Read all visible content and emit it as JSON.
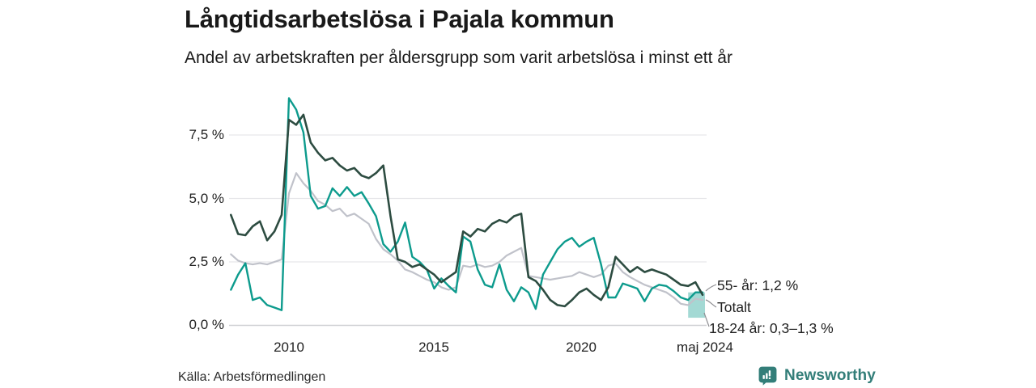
{
  "header": {
    "title": "Långtidsarbetslösa i Pajala kommun",
    "subtitle": "Andel av arbetskraften per åldersgrupp som varit arbetslösa i minst ett år"
  },
  "chart_data": {
    "type": "line",
    "title": "Långtidsarbetslösa i Pajala kommun",
    "subtitle": "Andel av arbetskraften per åldersgrupp som varit arbetslösa i minst ett år",
    "unit": "%",
    "x_start": 2008.0,
    "x_step": 0.25,
    "xlim": [
      2008.0,
      2024.37
    ],
    "ylim": [
      0,
      9
    ],
    "grid": "horizontal",
    "x_ticks": [
      {
        "t": 2010,
        "label": "2010"
      },
      {
        "t": 2015,
        "label": "2015"
      },
      {
        "t": 2020,
        "label": "2020"
      },
      {
        "t": 2024.33,
        "label": "maj 2024"
      }
    ],
    "y_ticks": [
      {
        "v": 7.5,
        "label": "7,5 %"
      },
      {
        "v": 5.0,
        "label": "5,0 %"
      },
      {
        "v": 2.5,
        "label": "2,5 %"
      },
      {
        "v": 0.0,
        "label": "0,0 %"
      }
    ],
    "series": [
      {
        "name": "Totalt",
        "color": "#c0c2ca",
        "width": 2.2,
        "values": [
          2.8,
          2.55,
          2.45,
          2.4,
          2.45,
          2.4,
          2.5,
          2.6,
          5.2,
          6.0,
          5.6,
          5.3,
          4.9,
          4.75,
          4.5,
          4.6,
          4.3,
          4.4,
          4.2,
          4.0,
          3.4,
          3.0,
          2.8,
          2.55,
          2.2,
          2.1,
          1.95,
          1.8,
          1.7,
          1.5,
          1.4,
          1.5,
          2.35,
          2.3,
          2.4,
          2.3,
          2.35,
          2.5,
          2.75,
          2.9,
          3.05,
          1.95,
          1.9,
          1.85,
          1.8,
          1.85,
          1.9,
          1.95,
          2.1,
          2.0,
          1.9,
          2.0,
          2.35,
          2.44,
          2.1,
          1.9,
          1.75,
          1.6,
          1.5,
          1.4,
          1.3,
          1.1,
          0.85,
          0.8,
          1.05,
          1.0
        ]
      },
      {
        "name": "18-24 år",
        "color": "#0d9b8d",
        "width": 2.4,
        "values": [
          1.4,
          2.0,
          2.45,
          1.0,
          1.1,
          0.8,
          0.7,
          0.6,
          8.95,
          8.5,
          7.6,
          5.1,
          4.6,
          4.7,
          5.4,
          5.1,
          5.45,
          5.1,
          5.25,
          4.8,
          4.3,
          3.2,
          2.9,
          3.3,
          4.05,
          2.7,
          2.5,
          2.2,
          1.45,
          1.85,
          1.55,
          1.3,
          3.5,
          3.3,
          2.2,
          1.6,
          1.5,
          2.4,
          1.4,
          0.95,
          1.5,
          1.3,
          0.65,
          2.0,
          2.5,
          3.0,
          3.3,
          3.45,
          3.1,
          3.3,
          3.45,
          2.4,
          1.1,
          1.1,
          1.65,
          1.55,
          1.45,
          0.95,
          1.45,
          1.6,
          1.55,
          1.35,
          1.1,
          1.0,
          1.3,
          1.3
        ]
      },
      {
        "name": "55- år",
        "color": "#2d4c41",
        "width": 2.6,
        "values": [
          4.35,
          3.6,
          3.55,
          3.9,
          4.1,
          3.35,
          3.7,
          4.35,
          8.1,
          7.9,
          8.3,
          7.2,
          6.8,
          6.5,
          6.6,
          6.3,
          6.1,
          6.2,
          5.9,
          5.8,
          6.0,
          6.3,
          4.3,
          2.6,
          2.5,
          2.3,
          2.4,
          2.2,
          2.0,
          1.7,
          1.9,
          2.1,
          3.7,
          3.5,
          3.8,
          3.7,
          4.0,
          4.15,
          4.05,
          4.3,
          4.4,
          1.9,
          1.75,
          1.4,
          1.0,
          0.8,
          0.75,
          1.0,
          1.3,
          1.45,
          1.2,
          1.0,
          1.5,
          2.7,
          2.4,
          2.1,
          2.3,
          2.1,
          2.2,
          2.1,
          2.0,
          1.8,
          1.6,
          1.55,
          1.7,
          1.2
        ]
      }
    ],
    "uncertainty_band": {
      "series": "18-24 år",
      "t_start": 2023.75,
      "t_end": 2024.33,
      "low": 0.3,
      "high": 1.3,
      "color": "#0d9b8d",
      "opacity": 0.38
    },
    "annotations": [
      {
        "id": "a55",
        "label": "55- år: 1,2 %"
      },
      {
        "id": "atot",
        "label": "Totalt"
      },
      {
        "id": "a1824",
        "label": "18-24 år: 0,3–1,3 %"
      }
    ],
    "legend_position": "right-annotations"
  },
  "footer": {
    "source": "Källa: Arbetsförmedlingen",
    "brand": "Newsworthy",
    "brand_color": "#337e79"
  },
  "icons": {
    "newsworthy_logo": "newsworthy-chart-bubble-icon"
  }
}
